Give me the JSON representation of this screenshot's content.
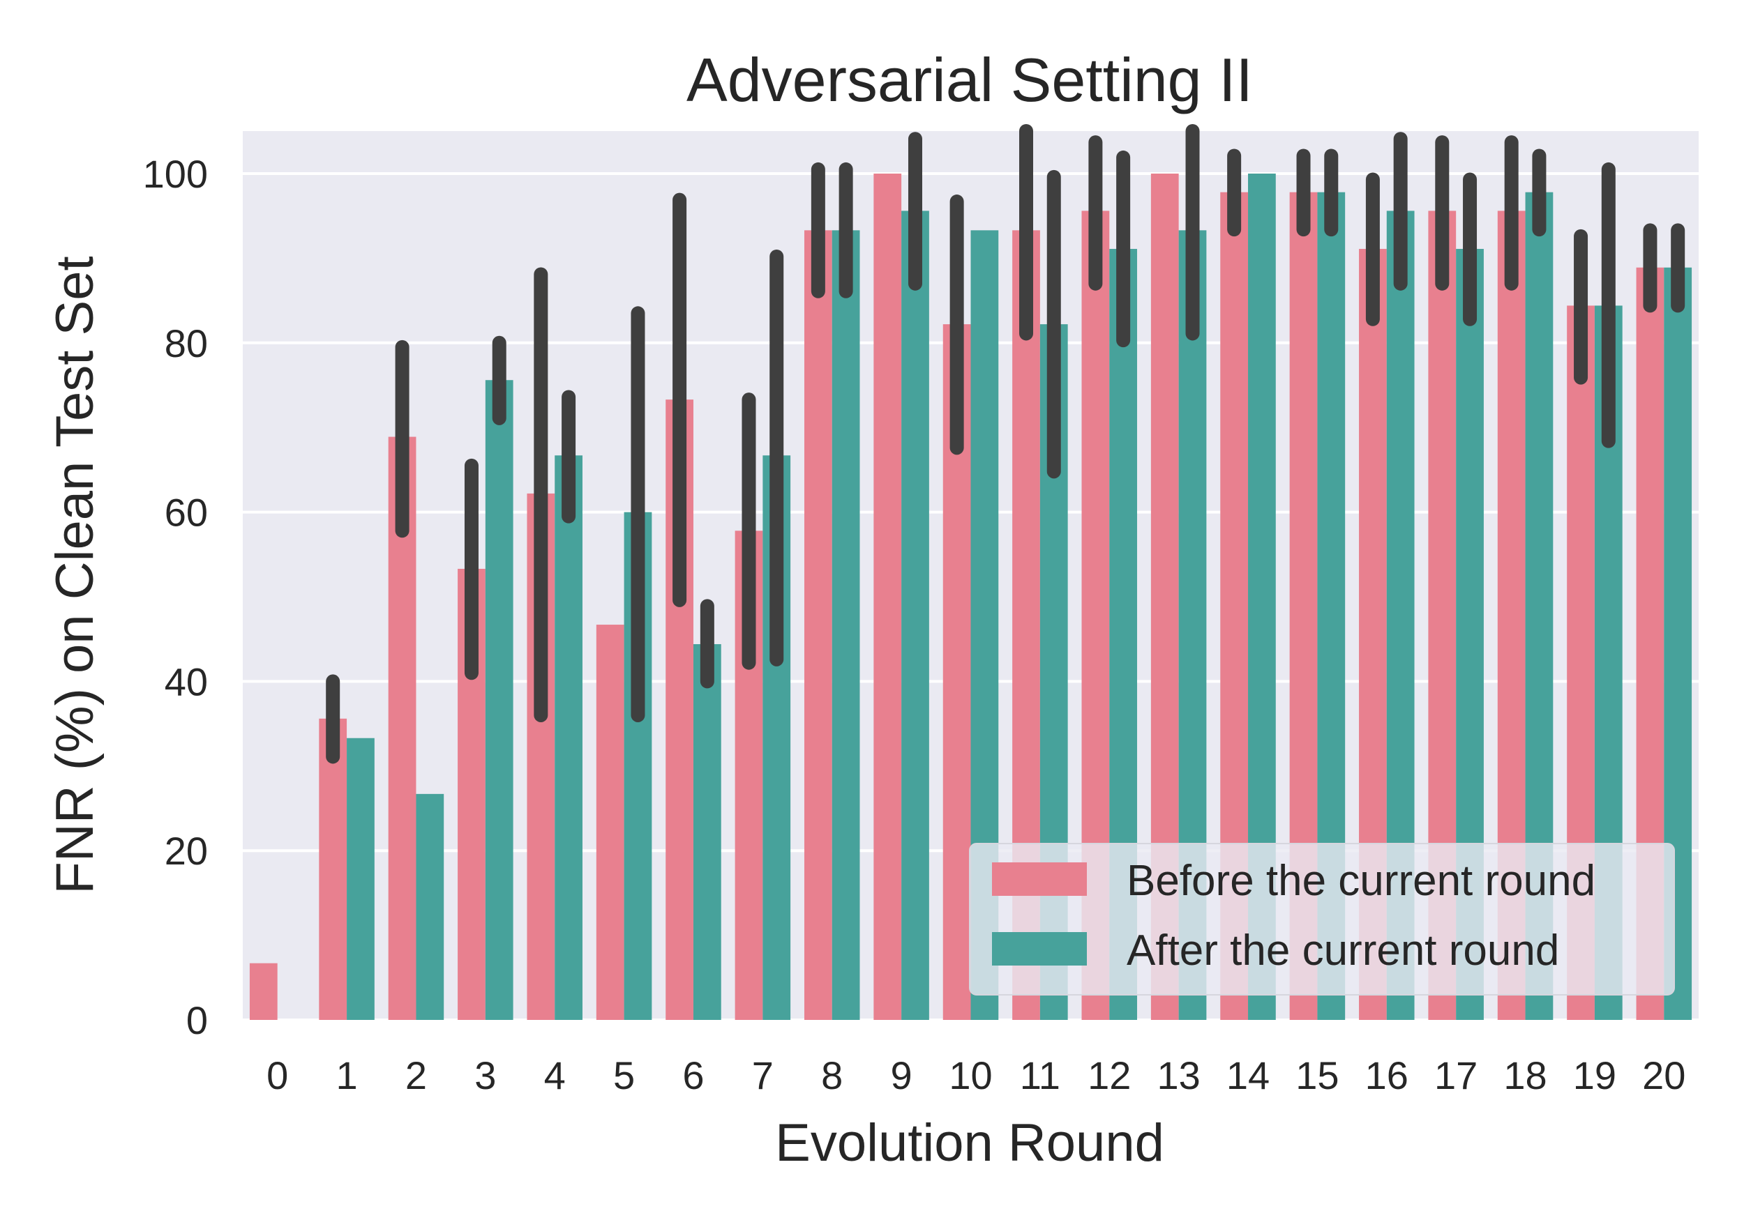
{
  "chart_data": {
    "type": "bar",
    "title": "Adversarial Setting II",
    "xlabel": "Evolution Round",
    "ylabel": "FNR (%) on Clean Test Set",
    "categories": [
      "0",
      "1",
      "2",
      "3",
      "4",
      "5",
      "6",
      "7",
      "8",
      "9",
      "10",
      "11",
      "12",
      "13",
      "14",
      "15",
      "16",
      "17",
      "18",
      "19",
      "20"
    ],
    "ylim": [
      0,
      105
    ],
    "yticks": [
      0,
      20,
      40,
      60,
      80,
      100
    ],
    "grid": true,
    "legend_position": "bottom-right",
    "series": [
      {
        "name": "Before the current round",
        "color": "#e8808f",
        "values": [
          6.7,
          35.6,
          68.9,
          53.3,
          62.2,
          46.7,
          73.3,
          57.8,
          93.3,
          100,
          82.2,
          93.3,
          95.6,
          100,
          97.8,
          97.8,
          91.1,
          95.6,
          95.6,
          84.4,
          88.9
        ],
        "ci_low": [
          null,
          31.1,
          57.8,
          41.0,
          36.0,
          null,
          49.6,
          42.2,
          86.1,
          null,
          67.6,
          81.1,
          87.0,
          null,
          93.4,
          93.4,
          82.8,
          87.0,
          87.0,
          75.9,
          84.4
        ],
        "ci_high": [
          null,
          40.0,
          79.5,
          65.5,
          88.1,
          null,
          96.9,
          73.3,
          100.5,
          null,
          96.7,
          105.4,
          103.7,
          null,
          102.1,
          102.1,
          99.3,
          103.7,
          103.7,
          92.6,
          93.3
        ]
      },
      {
        "name": "After the current round",
        "color": "#47a29b",
        "values": [
          0,
          33.3,
          26.7,
          75.6,
          66.7,
          60.0,
          44.4,
          66.7,
          93.3,
          95.6,
          93.3,
          82.2,
          91.1,
          93.3,
          100,
          97.8,
          95.6,
          91.1,
          97.8,
          84.4,
          88.9
        ],
        "ci_low": [
          null,
          null,
          null,
          71.1,
          59.5,
          36.0,
          40.0,
          42.6,
          86.1,
          87.0,
          null,
          64.8,
          80.3,
          81.1,
          null,
          93.4,
          87.0,
          82.8,
          93.4,
          68.4,
          84.4
        ],
        "ci_high": [
          null,
          null,
          null,
          80.0,
          73.6,
          83.5,
          48.9,
          90.2,
          100.5,
          104.1,
          null,
          99.6,
          101.9,
          105.6,
          null,
          102.1,
          104.1,
          99.3,
          102.1,
          100.5,
          93.3
        ]
      }
    ]
  }
}
